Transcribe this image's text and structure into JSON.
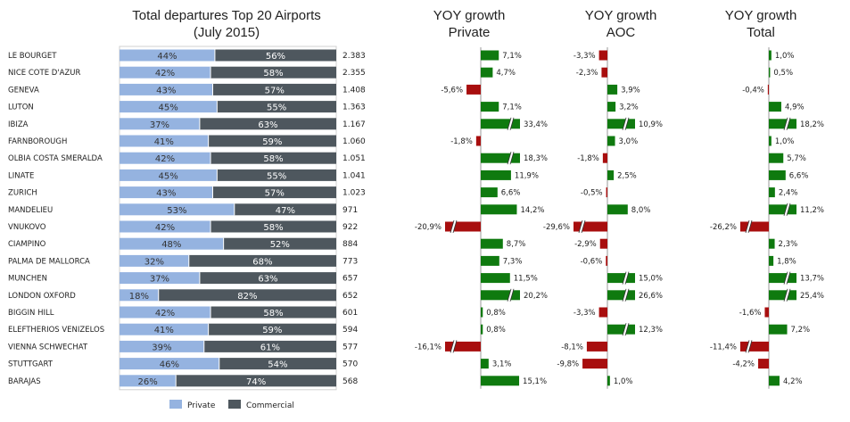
{
  "chart_data": {
    "type": "bar",
    "title_lines": [
      "Total departures Top 20 Airports",
      "(July 2015)"
    ],
    "categories": [
      "LE BOURGET",
      "NICE COTE D'AZUR",
      "GENEVA",
      "LUTON",
      "IBIZA",
      "FARNBOROUGH",
      "OLBIA COSTA SMERALDA",
      "LINATE",
      "ZURICH",
      "MANDELIEU",
      "VNUKOVO",
      "CIAMPINO",
      "PALMA DE MALLORCA",
      "MUNCHEN",
      "LONDON OXFORD",
      "BIGGIN HILL",
      "ELEFTHERIOS VENIZELOS",
      "VIENNA SCHWECHAT",
      "STUTTGART",
      "BARAJAS"
    ],
    "totals": [
      "2.383",
      "2.355",
      "1.408",
      "1.363",
      "1.167",
      "1.060",
      "1.051",
      "1.041",
      "1.023",
      "971",
      "922",
      "884",
      "773",
      "657",
      "652",
      "601",
      "594",
      "577",
      "570",
      "568"
    ],
    "share": {
      "series": [
        {
          "name": "Private",
          "color": "#95b3e0",
          "values": [
            44,
            42,
            43,
            45,
            37,
            41,
            42,
            45,
            43,
            53,
            42,
            48,
            32,
            37,
            18,
            42,
            41,
            39,
            46,
            26
          ]
        },
        {
          "name": "Commercial",
          "color": "#4e575e",
          "values": [
            56,
            58,
            57,
            55,
            63,
            59,
            58,
            55,
            57,
            47,
            58,
            52,
            68,
            63,
            82,
            58,
            59,
            61,
            54,
            74
          ]
        }
      ],
      "xlim": [
        0,
        100
      ]
    },
    "yoy": [
      {
        "title_lines": [
          "YOY growth",
          "Private"
        ],
        "values": [
          7.1,
          4.7,
          -5.6,
          7.1,
          33.4,
          -1.8,
          18.3,
          11.9,
          6.6,
          14.2,
          -20.9,
          8.7,
          7.3,
          11.5,
          20.2,
          0.8,
          0.8,
          -16.1,
          3.1,
          15.1
        ],
        "labels": [
          "7,1%",
          "4,7%",
          "-5,6%",
          "7,1%",
          "33,4%",
          "-1,8%",
          "18,3%",
          "11,9%",
          "6,6%",
          "14,2%",
          "-20,9%",
          "8,7%",
          "7,3%",
          "11,5%",
          "20,2%",
          "0,8%",
          "0,8%",
          "-16,1%",
          "3,1%",
          "15,1%"
        ]
      },
      {
        "title_lines": [
          "YOY growth",
          "AOC"
        ],
        "values": [
          -3.3,
          -2.3,
          3.9,
          3.2,
          10.9,
          3.0,
          -1.8,
          2.5,
          -0.5,
          8.0,
          -29.6,
          -2.9,
          -0.6,
          15.0,
          26.6,
          -3.3,
          12.3,
          -8.1,
          -9.8,
          1.0
        ],
        "labels": [
          "-3,3%",
          "-2,3%",
          "3,9%",
          "3,2%",
          "10,9%",
          "3,0%",
          "-1,8%",
          "2,5%",
          "-0,5%",
          "8,0%",
          "-29,6%",
          "-2,9%",
          "-0,6%",
          "15,0%",
          "26,6%",
          "-3,3%",
          "12,3%",
          "-8,1%",
          "-9,8%",
          "1,0%"
        ]
      },
      {
        "title_lines": [
          "YOY growth",
          "Total"
        ],
        "values": [
          1.0,
          0.5,
          -0.4,
          4.9,
          18.2,
          1.0,
          5.7,
          6.6,
          2.4,
          11.2,
          -26.2,
          2.3,
          1.8,
          13.7,
          25.4,
          -1.6,
          7.2,
          -11.4,
          -4.2,
          4.2
        ],
        "labels": [
          "1,0%",
          "0,5%",
          "-0,4%",
          "4,9%",
          "18,2%",
          "1,0%",
          "5,7%",
          "6,6%",
          "2,4%",
          "11,2%",
          "-26,2%",
          "2,3%",
          "1,8%",
          "13,7%",
          "25,4%",
          "-1,6%",
          "7,2%",
          "-11,4%",
          "-4,2%",
          "4,2%"
        ]
      }
    ],
    "colors": {
      "positive": "#0f7a0f",
      "negative": "#a80e0e",
      "axis": "#9a9a9a"
    },
    "legend": {
      "placement": "bottom",
      "entries": [
        "Private",
        "Commercial"
      ]
    }
  }
}
